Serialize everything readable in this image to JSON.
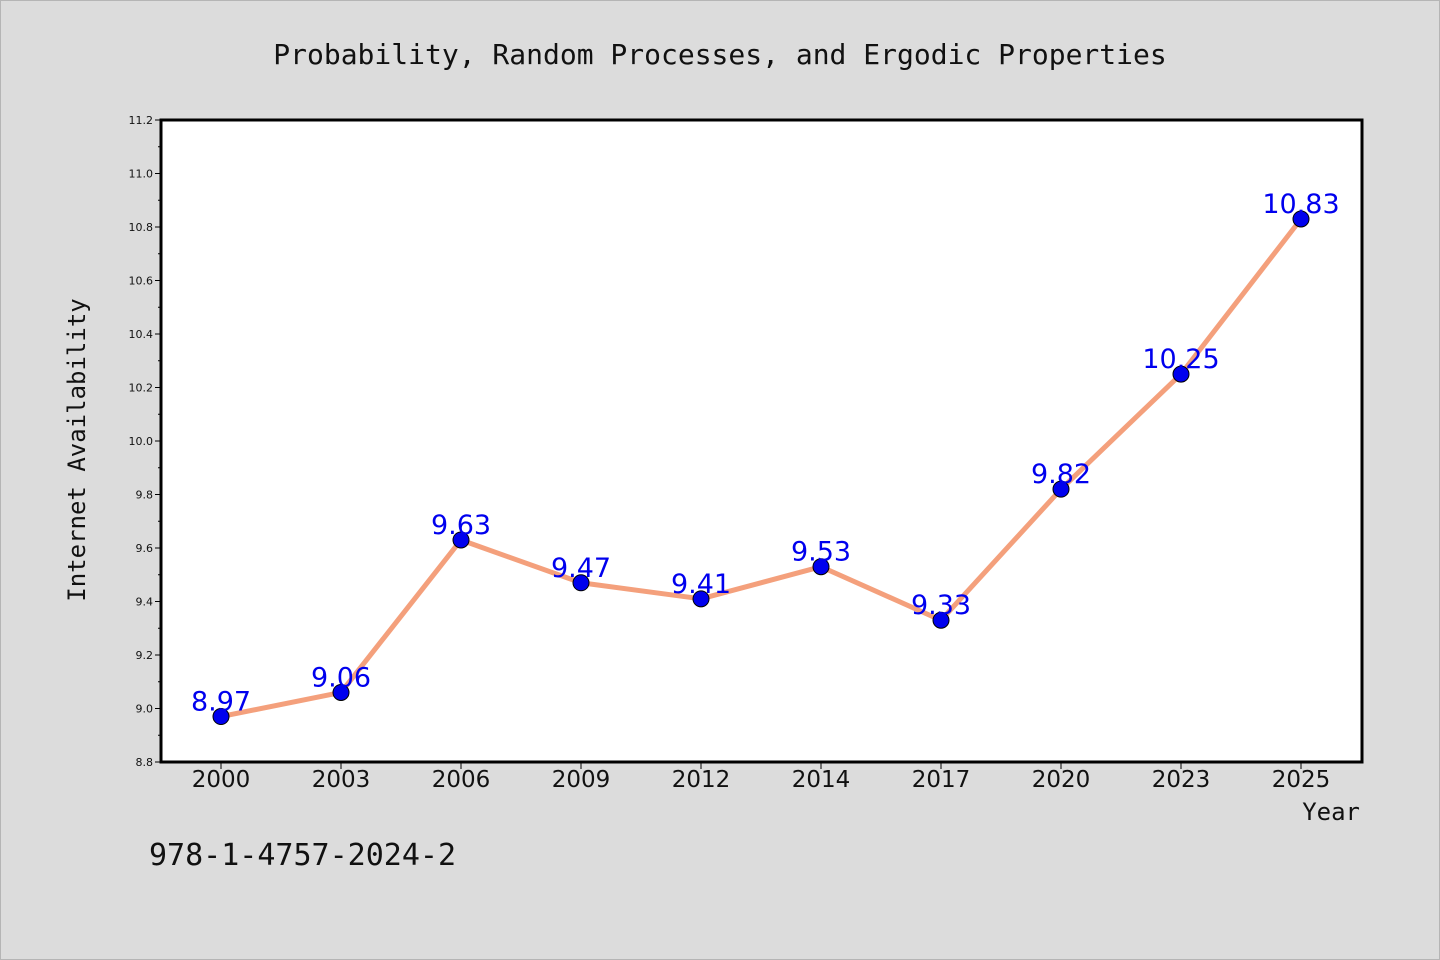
{
  "chart_data": {
    "type": "line",
    "title": "Probability, Random Processes, and Ergodic Properties",
    "xlabel": "Year",
    "ylabel": "Internet Availability",
    "categories": [
      "2000",
      "2003",
      "2006",
      "2009",
      "2012",
      "2014",
      "2017",
      "2020",
      "2023",
      "2025"
    ],
    "series": [
      {
        "values": [
          8.97,
          9.06,
          9.63,
          9.47,
          9.41,
          9.53,
          9.33,
          9.82,
          10.25,
          10.83
        ],
        "data_labels": [
          "8.97",
          "9.06",
          "9.63",
          "9.47",
          "9.41",
          "9.53",
          "9.33",
          "9.82",
          "10.25",
          "10.83"
        ],
        "line_color": "#f4a07c",
        "marker_color": "#0000ee",
        "label_color": "#0000ee"
      }
    ],
    "ylim": [
      8.8,
      11.2
    ],
    "yticks": [
      "8.8",
      "9.0",
      "9.2",
      "9.4",
      "9.6",
      "9.8",
      "10.0",
      "10.2",
      "10.4",
      "10.6",
      "10.8",
      "11.0",
      "11.2"
    ],
    "grid": false,
    "legend": "none"
  },
  "annotation": {
    "isbn": "978-1-4757-2024-2"
  },
  "colors": {
    "background": "#dcdcdc",
    "plot_area": "#ffffff",
    "axes": "#000000"
  }
}
